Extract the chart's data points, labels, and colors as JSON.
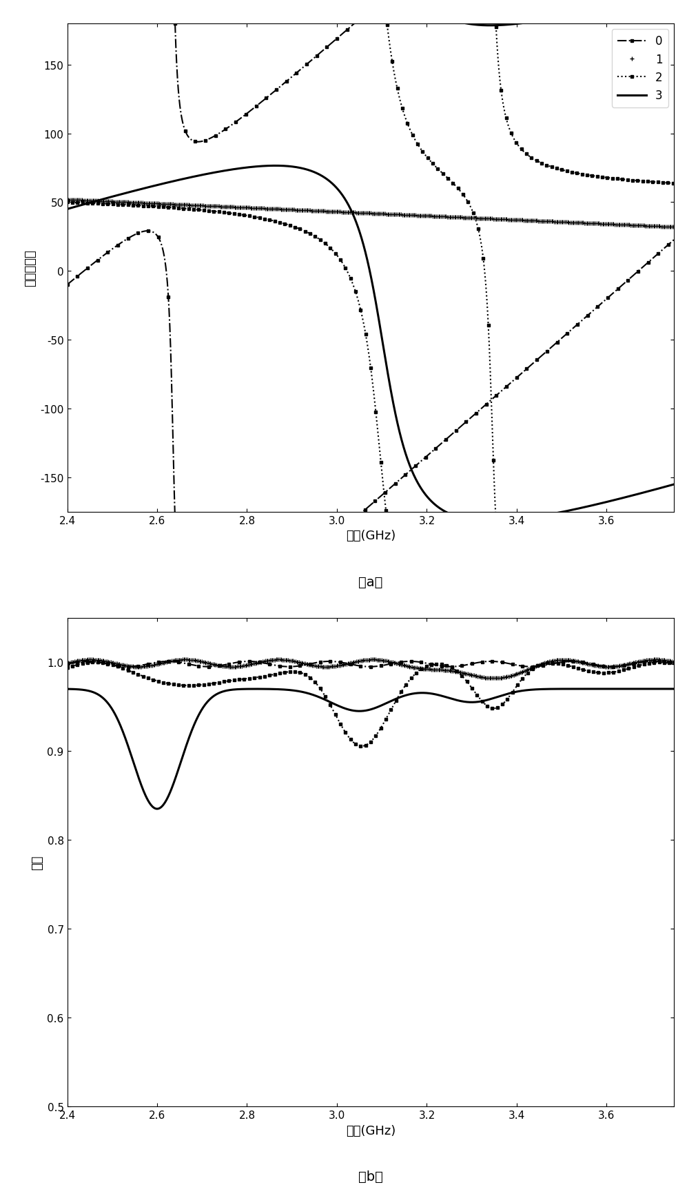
{
  "fig_width": 10.13,
  "fig_height": 17.4,
  "dpi": 100,
  "plot_a": {
    "xlabel": "频率(GHz)",
    "ylabel": "相位（度）",
    "caption": "（a）",
    "xlim": [
      2.4,
      3.75
    ],
    "ylim": [
      -175,
      180
    ],
    "xticks": [
      2.4,
      2.6,
      2.8,
      3.0,
      3.2,
      3.4,
      3.6
    ],
    "yticks": [
      -150,
      -100,
      -50,
      0,
      50,
      100,
      150
    ]
  },
  "plot_b": {
    "xlabel": "频率(GHz)",
    "ylabel": "幅度",
    "caption": "（b）",
    "xlim": [
      2.4,
      3.75
    ],
    "ylim": [
      0.5,
      1.05
    ],
    "xticks": [
      2.4,
      2.6,
      2.8,
      3.0,
      3.2,
      3.4,
      3.6
    ],
    "yticks": [
      0.5,
      0.6,
      0.7,
      0.8,
      0.9,
      1.0
    ]
  }
}
